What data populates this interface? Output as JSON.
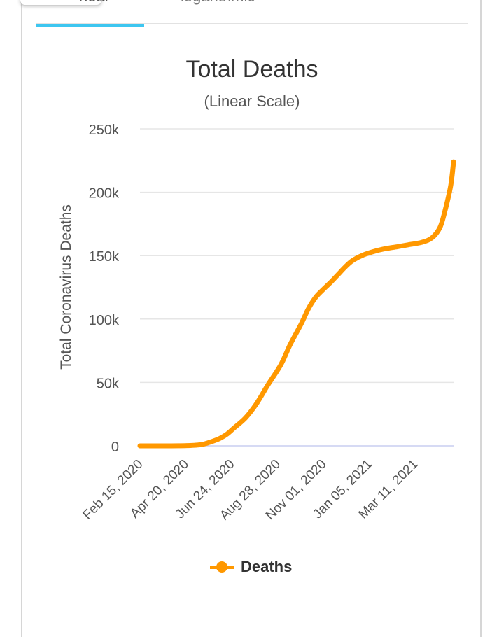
{
  "tabs": {
    "linear_label": "near",
    "log_label": "logarithmic"
  },
  "chart_data": {
    "type": "line",
    "title": "Total Deaths",
    "subtitle": "(Linear Scale)",
    "ylabel": "Total Coronavirus Deaths",
    "xlabel": "",
    "ylim": [
      0,
      250000
    ],
    "y_ticks": [
      {
        "value": 0,
        "label": "0"
      },
      {
        "value": 50000,
        "label": "50k"
      },
      {
        "value": 100000,
        "label": "100k"
      },
      {
        "value": 150000,
        "label": "150k"
      },
      {
        "value": 200000,
        "label": "200k"
      },
      {
        "value": 250000,
        "label": "250k"
      }
    ],
    "x_ticks": [
      "Feb 15, 2020",
      "Apr 20, 2020",
      "Jun 24, 2020",
      "Aug 28, 2020",
      "Nov 01, 2020",
      "Jan 05, 2021",
      "Mar 11, 2021"
    ],
    "grid": true,
    "legend_position": "bottom",
    "color": "#ff9800",
    "series": [
      {
        "name": "Deaths",
        "x": [
          "2020-02-15",
          "2020-03-20",
          "2020-04-20",
          "2020-05-10",
          "2020-05-25",
          "2020-06-05",
          "2020-06-15",
          "2020-06-24",
          "2020-07-10",
          "2020-07-25",
          "2020-08-10",
          "2020-08-28",
          "2020-09-10",
          "2020-09-25",
          "2020-10-05",
          "2020-10-15",
          "2020-10-25",
          "2020-11-05",
          "2020-11-15",
          "2020-11-25",
          "2020-12-05",
          "2020-12-20",
          "2021-01-05",
          "2021-01-20",
          "2021-02-05",
          "2021-02-20",
          "2021-03-11",
          "2021-03-25",
          "2021-04-05",
          "2021-04-12",
          "2021-04-20",
          "2021-04-24"
        ],
        "values": [
          0,
          0,
          200,
          1000,
          3500,
          6000,
          9500,
          14000,
          22000,
          33000,
          48000,
          64000,
          80000,
          96000,
          108000,
          117000,
          123000,
          129000,
          135000,
          141000,
          146000,
          150500,
          153500,
          155500,
          157000,
          158500,
          160500,
          164000,
          172000,
          185000,
          205000,
          224000
        ]
      }
    ]
  }
}
